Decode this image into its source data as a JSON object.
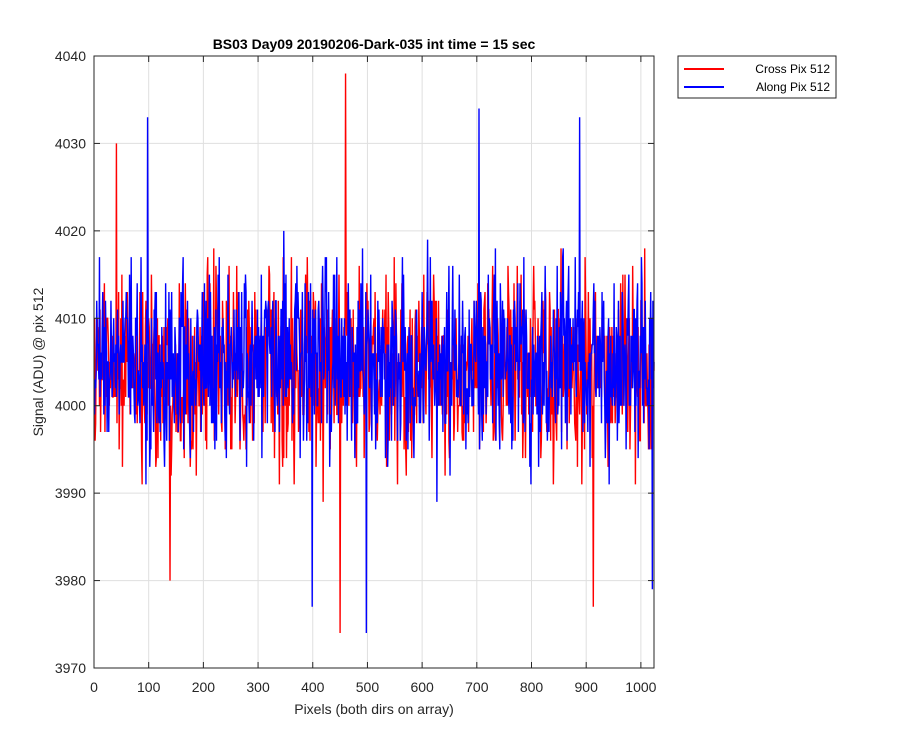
{
  "chart_data": {
    "type": "line",
    "title": "BS03 Day09 20190206-Dark-035 int time = 15 sec",
    "xlabel": "Pixels (both dirs on array)",
    "ylabel": "Signal (ADU) @ pix 512",
    "xlim": [
      0,
      1024
    ],
    "ylim": [
      3970,
      4040
    ],
    "xticks": [
      0,
      100,
      200,
      300,
      400,
      500,
      600,
      700,
      800,
      900,
      1000
    ],
    "yticks": [
      3970,
      3980,
      3990,
      4000,
      4010,
      4020,
      4030,
      4040
    ],
    "grid": true,
    "legend_position": "outside-top-right",
    "series": [
      {
        "name": "Cross Pix 512",
        "color": "#ff0000",
        "n_points": 1024,
        "baseline": 4004,
        "spread": 5.5,
        "extremes": [
          {
            "x": 40,
            "y": 4030
          },
          {
            "x": 138,
            "y": 3980
          },
          {
            "x": 449,
            "y": 3974
          },
          {
            "x": 459,
            "y": 4038
          },
          {
            "x": 912,
            "y": 3977
          }
        ]
      },
      {
        "name": "Along Pix 512",
        "color": "#0000ff",
        "n_points": 1024,
        "baseline": 4005,
        "spread": 5.5,
        "extremes": [
          {
            "x": 97,
            "y": 4033
          },
          {
            "x": 398,
            "y": 3977
          },
          {
            "x": 497,
            "y": 3974
          },
          {
            "x": 703,
            "y": 4034
          },
          {
            "x": 887,
            "y": 4033
          },
          {
            "x": 1020,
            "y": 3979
          }
        ]
      }
    ]
  }
}
